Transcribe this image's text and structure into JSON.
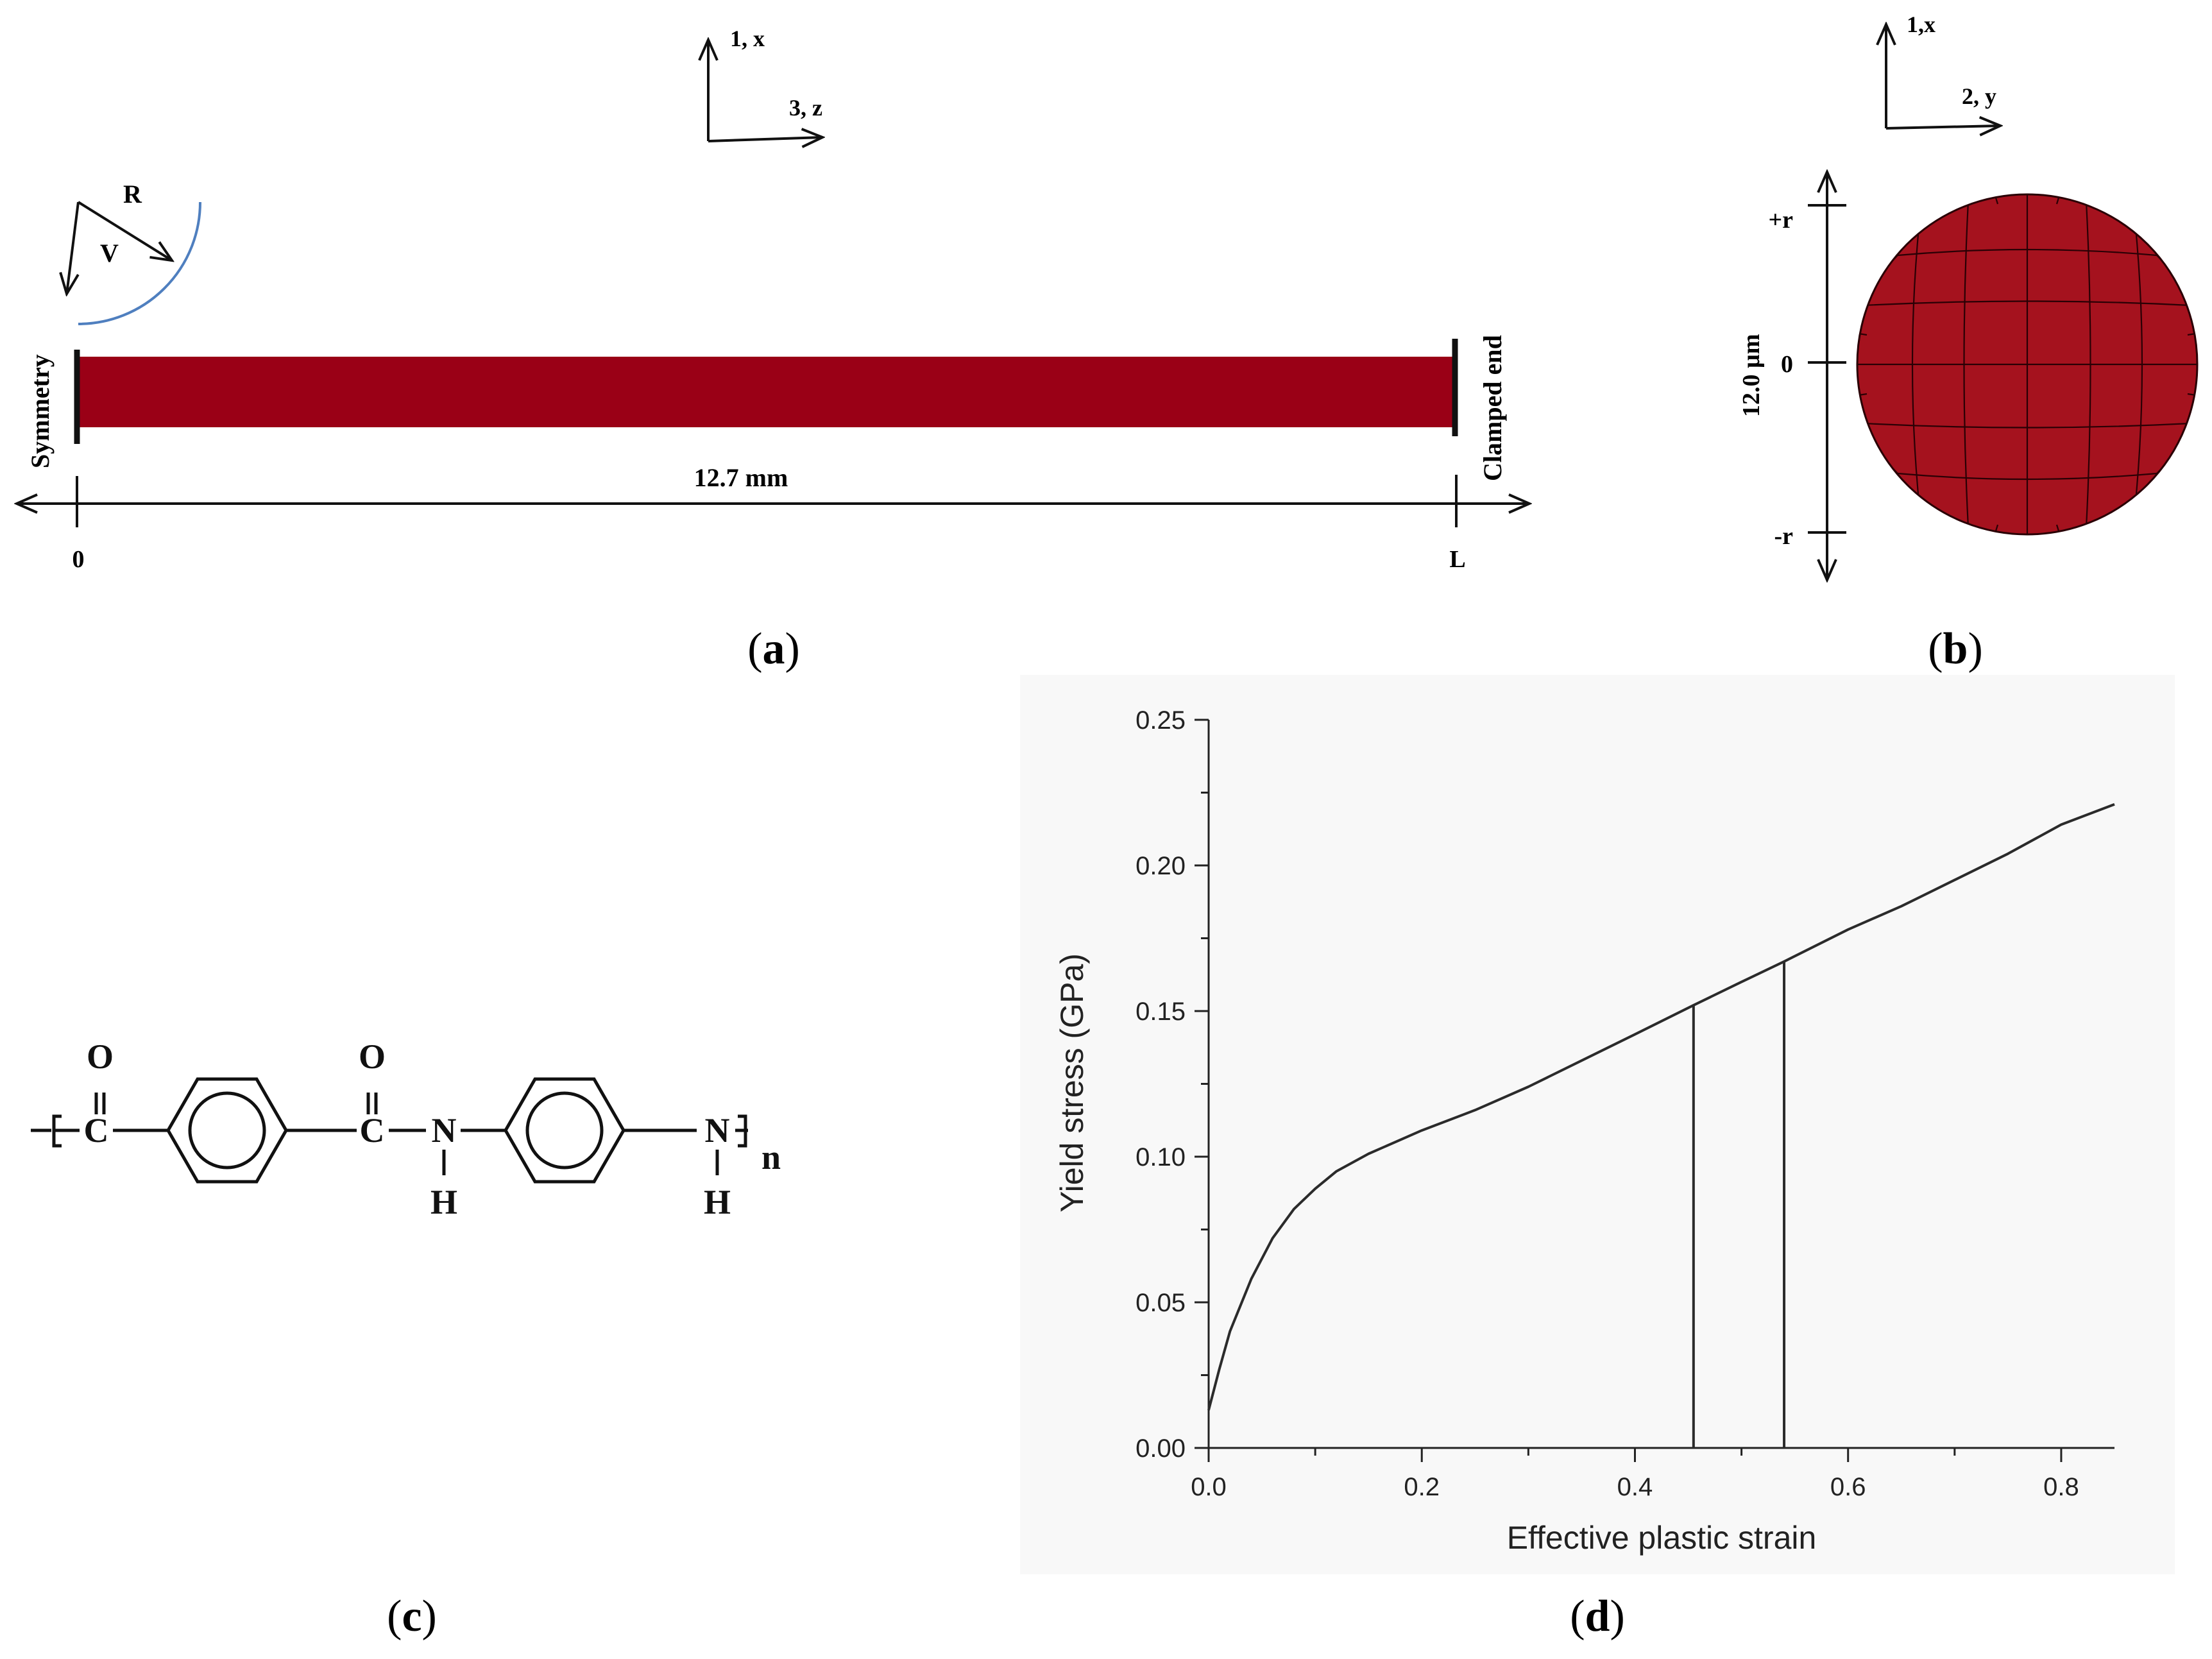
{
  "colors": {
    "fiber": "#9a0016",
    "arc": "#4f7fbf",
    "ink": "#111111",
    "plot_bg": "#f8f8f8"
  },
  "panel_a": {
    "caption": "(a)",
    "caption_letter": "a",
    "axis_up": "1, x",
    "axis_right": "3, z",
    "arc_label_r": "R",
    "arc_label_v": "V",
    "symmetry": "Symmetry",
    "clamped_end": "Clamped end",
    "length": "12.7 mm",
    "tick_zero": "0",
    "tick_l": "L"
  },
  "panel_b": {
    "caption": "(b)",
    "caption_letter": "b",
    "axis_up": "1,x",
    "axis_right": "2, y",
    "plus_r": "+r",
    "zero": "0",
    "minus_r": "-r",
    "diameter": "12.0 µm"
  },
  "panel_c": {
    "caption": "(c)",
    "caption_letter": "c",
    "atoms": {
      "O1": "O",
      "C1": "C",
      "O2": "O",
      "C2": "C",
      "N1": "N",
      "H1": "H",
      "N2": "N",
      "H2": "H",
      "n": "n"
    }
  },
  "panel_d": {
    "caption": "(d)",
    "caption_letter": "d"
  },
  "chart_data": {
    "type": "line",
    "xlabel": "Effective plastic strain",
    "ylabel": "Yield stress (GPa)",
    "xlim": [
      0.0,
      0.85
    ],
    "ylim": [
      0.0,
      0.25
    ],
    "xticks": [
      "0.0",
      "0.2",
      "0.4",
      "0.6",
      "0.8"
    ],
    "yticks": [
      "0.00",
      "0.05",
      "0.10",
      "0.15",
      "0.20",
      "0.25"
    ],
    "grid": false,
    "series": [
      {
        "x": [
          0.0,
          0.01,
          0.02,
          0.04,
          0.06,
          0.08,
          0.1,
          0.12,
          0.15,
          0.2,
          0.25,
          0.3,
          0.35,
          0.4,
          0.455,
          0.5,
          0.54,
          0.6,
          0.65,
          0.7,
          0.75,
          0.8,
          0.85
        ],
        "y": [
          0.013,
          0.027,
          0.04,
          0.058,
          0.072,
          0.082,
          0.089,
          0.095,
          0.101,
          0.109,
          0.116,
          0.124,
          0.133,
          0.142,
          0.152,
          0.16,
          0.167,
          0.178,
          0.186,
          0.195,
          0.204,
          0.214,
          0.221
        ]
      }
    ],
    "drops": [
      {
        "x": 0.455,
        "y_top": 0.152,
        "y_bottom": 0.0
      },
      {
        "x": 0.54,
        "y_top": 0.167,
        "y_bottom": 0.0
      }
    ]
  }
}
